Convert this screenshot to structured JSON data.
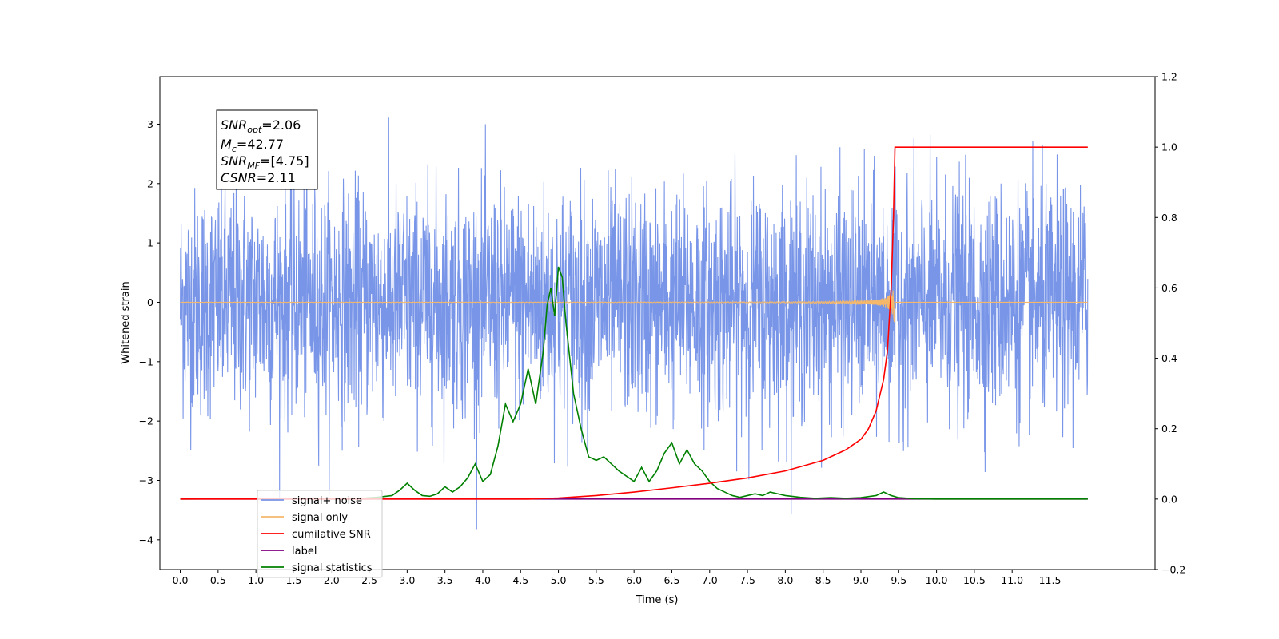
{
  "chart_data": {
    "type": "line",
    "xlabel": "Time (s)",
    "ylabel": "Whitened strain",
    "xlim": [
      -0.27,
      12.89
    ],
    "ylim": [
      -4.5,
      3.8
    ],
    "ylim_right": [
      -0.2,
      1.2
    ],
    "x_ticks": [
      "0.0",
      "0.5",
      "1.0",
      "1.5",
      "2.0",
      "2.5",
      "3.0",
      "3.5",
      "4.0",
      "4.5",
      "5.0",
      "5.5",
      "6.0",
      "6.5",
      "7.0",
      "7.5",
      "8.0",
      "8.5",
      "9.0",
      "9.5",
      "10.0",
      "10.5",
      "11.0",
      "11.5"
    ],
    "y_ticks": [
      "3",
      "2",
      "1",
      "0",
      "−1",
      "−2",
      "−3",
      "−4"
    ],
    "y_ticks_right": [
      "1.2",
      "1.0",
      "0.8",
      "0.6",
      "0.4",
      "0.2",
      "0.0",
      "−0.2"
    ],
    "grid": false,
    "legend_position": "lower-left",
    "annotation": {
      "snr_opt": {
        "name": "SNR",
        "sub": "opt",
        "value": "=2.06"
      },
      "mc": {
        "name": "M",
        "sub": "c",
        "value": "=42.77"
      },
      "snr_mf": {
        "name": "SNR",
        "sub": "MF",
        "value": "=[4.75]"
      },
      "csnr": {
        "name": "CSNR",
        "value": "=2.11"
      }
    },
    "series": [
      {
        "name": "signal+ noise",
        "axis": "left",
        "color": "#7895e8",
        "description": "whitened strain with Gaussian noise, amplitude approx ±2 with peaks near ±3.5",
        "noise_sigma": 0.95,
        "x_range": [
          0.0,
          12.0
        ]
      },
      {
        "name": "signal only",
        "axis": "left",
        "color": "#f5b86b",
        "description": "chirp signal, near zero, growing to ~±0.5 near t=9.45",
        "x_range": [
          0.0,
          12.0
        ],
        "merger_time": 9.45,
        "peak_amplitude": 0.5
      },
      {
        "name": "cumilative SNR",
        "axis": "right",
        "color": "#ff0000",
        "x": [
          0.0,
          4.6,
          5.0,
          5.5,
          6.0,
          6.5,
          7.0,
          7.5,
          8.0,
          8.5,
          8.8,
          9.0,
          9.1,
          9.2,
          9.3,
          9.35,
          9.4,
          9.43,
          9.45,
          12.0
        ],
        "values": [
          0.0,
          0.0,
          0.003,
          0.01,
          0.02,
          0.032,
          0.045,
          0.06,
          0.08,
          0.11,
          0.14,
          0.17,
          0.2,
          0.25,
          0.34,
          0.42,
          0.6,
          0.8,
          1.0,
          1.0
        ]
      },
      {
        "name": "label",
        "axis": "right",
        "color": "#800080",
        "x": [
          0.0,
          12.0
        ],
        "values": [
          0.0,
          0.0
        ]
      },
      {
        "name": "signal statistics",
        "axis": "right",
        "color": "#008000",
        "x": [
          0.0,
          2.4,
          2.6,
          2.8,
          2.9,
          3.0,
          3.1,
          3.2,
          3.3,
          3.4,
          3.5,
          3.6,
          3.7,
          3.8,
          3.9,
          4.0,
          4.1,
          4.2,
          4.3,
          4.4,
          4.5,
          4.6,
          4.7,
          4.8,
          4.85,
          4.9,
          4.95,
          5.0,
          5.05,
          5.1,
          5.15,
          5.2,
          5.3,
          5.4,
          5.5,
          5.6,
          5.7,
          5.8,
          6.0,
          6.1,
          6.2,
          6.3,
          6.4,
          6.5,
          6.6,
          6.7,
          6.8,
          6.9,
          7.0,
          7.1,
          7.2,
          7.3,
          7.4,
          7.5,
          7.6,
          7.7,
          7.8,
          7.9,
          8.0,
          8.2,
          8.4,
          8.6,
          8.8,
          9.0,
          9.2,
          9.3,
          9.4,
          9.5,
          9.7,
          10.0,
          12.0
        ],
        "values": [
          0.0,
          0.002,
          0.005,
          0.01,
          0.025,
          0.045,
          0.025,
          0.01,
          0.008,
          0.015,
          0.035,
          0.02,
          0.035,
          0.06,
          0.1,
          0.05,
          0.07,
          0.15,
          0.27,
          0.22,
          0.27,
          0.37,
          0.27,
          0.42,
          0.55,
          0.6,
          0.52,
          0.66,
          0.63,
          0.5,
          0.4,
          0.3,
          0.2,
          0.12,
          0.11,
          0.12,
          0.1,
          0.08,
          0.05,
          0.09,
          0.05,
          0.08,
          0.13,
          0.16,
          0.1,
          0.14,
          0.1,
          0.08,
          0.05,
          0.03,
          0.02,
          0.01,
          0.005,
          0.01,
          0.015,
          0.01,
          0.02,
          0.015,
          0.01,
          0.005,
          0.002,
          0.004,
          0.002,
          0.004,
          0.01,
          0.02,
          0.01,
          0.004,
          0.001,
          0.0,
          0.0
        ]
      }
    ]
  },
  "legend": [
    {
      "label": "signal+ noise",
      "color": "#7895e8"
    },
    {
      "label": "signal only",
      "color": "#f5b86b"
    },
    {
      "label": "cumilative SNR",
      "color": "#ff0000"
    },
    {
      "label": "label",
      "color": "#800080"
    },
    {
      "label": "signal statistics",
      "color": "#008000"
    }
  ]
}
